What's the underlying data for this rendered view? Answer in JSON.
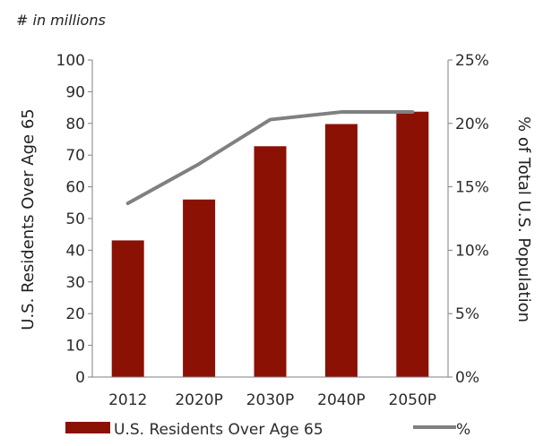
{
  "subtitle": "# in millions",
  "colors": {
    "bar": "#8b1105",
    "line": "#808080",
    "axis": "#7f7f7f",
    "text": "#2b2b2b"
  },
  "chart_data": {
    "type": "bar",
    "categories": [
      "2012",
      "2020P",
      "2030P",
      "2040P",
      "2050P"
    ],
    "series": [
      {
        "name": "U.S. Residents Over Age 65",
        "type": "bar",
        "axis": "left",
        "values": [
          43.1,
          56.0,
          72.8,
          79.8,
          83.7
        ]
      },
      {
        "name": "%",
        "type": "line",
        "axis": "right",
        "values": [
          13.7,
          16.8,
          20.3,
          20.9,
          20.9
        ]
      }
    ],
    "ylabel": "U.S. Residents Over Age 65",
    "y2label": "% of Total U.S. Population",
    "ylim": [
      0,
      100
    ],
    "y2lim": [
      0,
      25
    ],
    "yticks": [
      "0",
      "10",
      "20",
      "30",
      "40",
      "50",
      "60",
      "70",
      "80",
      "90",
      "100"
    ],
    "y2ticks": [
      "0%",
      "5%",
      "10%",
      "15%",
      "20%",
      "25%"
    ],
    "grid": false,
    "legend": "bottom"
  }
}
